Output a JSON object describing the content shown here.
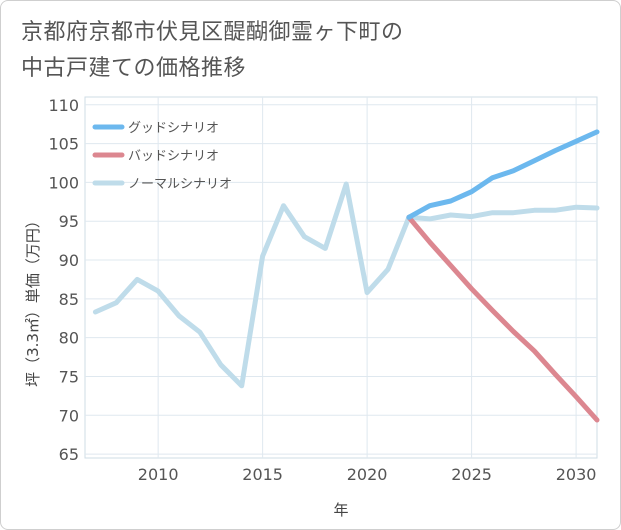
{
  "title_lines": [
    "京都府京都市伏見区醍醐御霊ヶ下町の",
    "中古戸建ての価格推移"
  ],
  "chart_data": {
    "type": "line",
    "title": "京都府京都市伏見区醍醐御霊ヶ下町の中古戸建ての価格推移",
    "xlabel": "年",
    "ylabel": "坪（3.3㎡）単価（万円）",
    "xlim": [
      2006.5,
      2031
    ],
    "ylim": [
      64.5,
      111
    ],
    "xticks": [
      2010,
      2015,
      2020,
      2025,
      2030
    ],
    "yticks": [
      65,
      70,
      75,
      80,
      85,
      90,
      95,
      100,
      105,
      110
    ],
    "legend_position": "top-left",
    "series": [
      {
        "name": "グッドシナリオ",
        "color": "#6cb8ee",
        "x": [
          2022,
          2023,
          2024,
          2025,
          2026,
          2027,
          2028,
          2029,
          2030,
          2031
        ],
        "y": [
          95.5,
          97.0,
          97.6,
          98.8,
          100.6,
          101.5,
          102.8,
          104.1,
          105.3,
          106.5
        ]
      },
      {
        "name": "バッドシナリオ",
        "color": "#dc8790",
        "x": [
          2022,
          2023,
          2024,
          2025,
          2026,
          2027,
          2028,
          2029,
          2030,
          2031
        ],
        "y": [
          95.5,
          92.3,
          89.3,
          86.3,
          83.5,
          80.8,
          78.3,
          75.3,
          72.4,
          69.4
        ]
      },
      {
        "name": "ノーマルシナリオ",
        "color": "#bfdcea",
        "x": [
          2007,
          2008,
          2009,
          2010,
          2011,
          2012,
          2013,
          2014,
          2015,
          2016,
          2017,
          2018,
          2019,
          2020,
          2021,
          2022,
          2023,
          2024,
          2025,
          2026,
          2027,
          2028,
          2029,
          2030,
          2031
        ],
        "y": [
          83.3,
          84.5,
          87.5,
          86.0,
          82.8,
          80.7,
          76.5,
          73.8,
          90.5,
          97.0,
          93.0,
          91.5,
          99.8,
          85.8,
          88.8,
          95.5,
          95.3,
          95.8,
          95.6,
          96.1,
          96.1,
          96.4,
          96.4,
          96.8,
          96.7
        ]
      }
    ]
  }
}
